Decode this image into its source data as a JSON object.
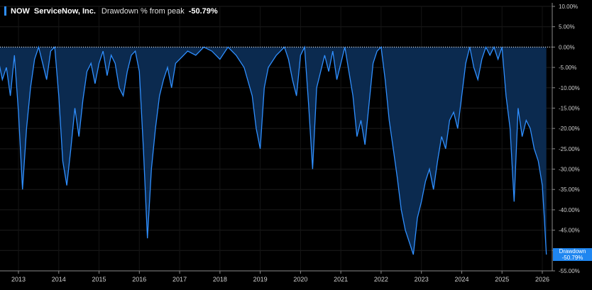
{
  "header": {
    "ticker": "NOW",
    "company": "ServiceNow, Inc.",
    "metric_label": "Drawdown % from peak",
    "metric_value": "-50.79%"
  },
  "badge": {
    "label": "Drawdown",
    "value": "-50.79%"
  },
  "colors": {
    "line": "#2f8fff",
    "fill": "#0b2a4f",
    "accent": "#2f8fff",
    "badge": "#1f86f0"
  },
  "chart_data": {
    "type": "area",
    "ylim": [
      -55,
      10
    ],
    "y_ticks": [
      "10.00%",
      "5.00%",
      "0.00%",
      "-5.00%",
      "-10.00%",
      "-15.00%",
      "-20.00%",
      "-25.00%",
      "-30.00%",
      "-35.00%",
      "-40.00%",
      "-45.00%",
      "-50.00%",
      "-55.00%"
    ],
    "x_ticks": [
      "2013",
      "2014",
      "2015",
      "2016",
      "2017",
      "2018",
      "2019",
      "2020",
      "2021",
      "2022",
      "2023",
      "2024",
      "2025",
      "2026"
    ],
    "series": [
      {
        "x": [
          2012.5,
          2012.6,
          2012.7,
          2012.8,
          2012.9,
          2013.0,
          2013.1,
          2013.2,
          2013.3,
          2013.4,
          2013.5,
          2013.6,
          2013.7,
          2013.8,
          2013.9,
          2014.0,
          2014.1,
          2014.2,
          2014.3,
          2014.4,
          2014.5,
          2014.6,
          2014.7,
          2014.8,
          2014.9,
          2015.0,
          2015.1,
          2015.2,
          2015.3,
          2015.4,
          2015.5,
          2015.6,
          2015.7,
          2015.8,
          2015.9,
          2016.0,
          2016.1,
          2016.2,
          2016.3,
          2016.4,
          2016.5,
          2016.6,
          2016.7,
          2016.8,
          2016.9,
          2017.0,
          2017.2,
          2017.4,
          2017.6,
          2017.8,
          2018.0,
          2018.2,
          2018.4,
          2018.6,
          2018.8,
          2018.9,
          2019.0,
          2019.1,
          2019.2,
          2019.4,
          2019.6,
          2019.7,
          2019.8,
          2019.9,
          2020.0,
          2020.1,
          2020.2,
          2020.3,
          2020.4,
          2020.6,
          2020.7,
          2020.8,
          2020.9,
          2021.0,
          2021.1,
          2021.2,
          2021.3,
          2021.4,
          2021.5,
          2021.6,
          2021.7,
          2021.8,
          2021.9,
          2022.0,
          2022.1,
          2022.2,
          2022.3,
          2022.4,
          2022.5,
          2022.6,
          2022.7,
          2022.8,
          2022.9,
          2023.0,
          2023.1,
          2023.2,
          2023.3,
          2023.4,
          2023.5,
          2023.6,
          2023.7,
          2023.8,
          2023.9,
          2024.0,
          2024.1,
          2024.2,
          2024.3,
          2024.4,
          2024.5,
          2024.6,
          2024.7,
          2024.8,
          2024.9,
          2025.0,
          2025.1,
          2025.2,
          2025.3,
          2025.4,
          2025.5,
          2025.6,
          2025.7,
          2025.8,
          2025.9,
          2026.0,
          2026.05,
          2026.1
        ],
        "values": [
          -3,
          -8,
          -5,
          -12,
          -2,
          -16,
          -35,
          -20,
          -10,
          -3,
          0,
          -4,
          -8,
          -1,
          0,
          -12,
          -28,
          -34,
          -25,
          -15,
          -22,
          -13,
          -6,
          -4,
          -9,
          -4,
          -1,
          -7,
          -2,
          -4,
          -10,
          -12,
          -6,
          -2,
          -1,
          -6,
          -25,
          -47,
          -30,
          -20,
          -12,
          -8,
          -5,
          -10,
          -4,
          -3,
          -1,
          -2,
          0,
          -1,
          -3,
          0,
          -2,
          -5,
          -12,
          -20,
          -25,
          -10,
          -5,
          -2,
          0,
          -3,
          -8,
          -12,
          -2,
          0,
          -14,
          -30,
          -10,
          -2,
          -6,
          -1,
          -8,
          -4,
          0,
          -6,
          -12,
          -22,
          -18,
          -24,
          -14,
          -4,
          -1,
          0,
          -8,
          -18,
          -25,
          -32,
          -40,
          -45,
          -48,
          -51,
          -42,
          -38,
          -33,
          -30,
          -35,
          -28,
          -22,
          -25,
          -18,
          -16,
          -20,
          -12,
          -4,
          0,
          -5,
          -8,
          -3,
          0,
          -2,
          0,
          -3,
          0,
          -12,
          -20,
          -38,
          -15,
          -22,
          -18,
          -20,
          -25,
          -28,
          -34,
          -42,
          -51
        ]
      }
    ]
  }
}
